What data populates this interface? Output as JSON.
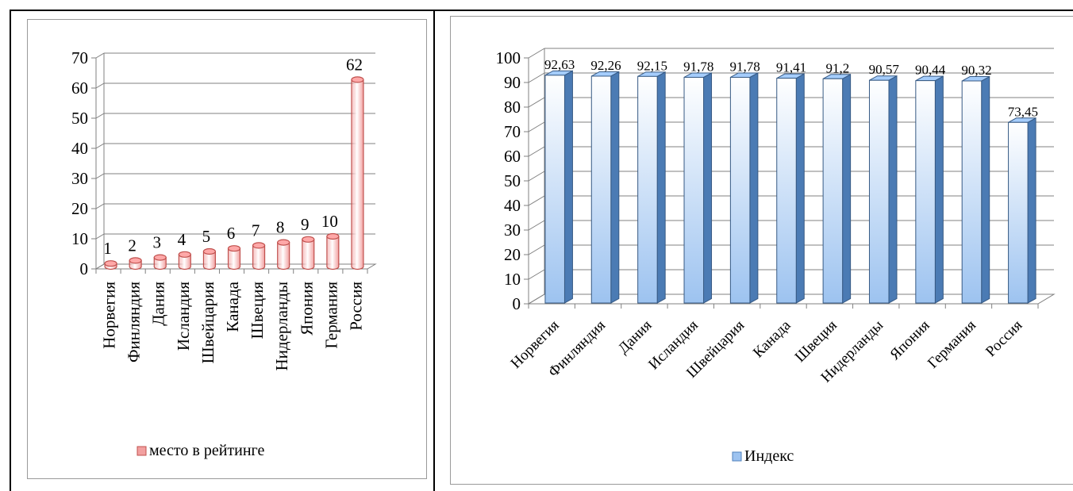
{
  "chart_data": [
    {
      "type": "bar",
      "categories": [
        "Норвегия",
        "Финляндия",
        "Дания",
        "Исландия",
        "Швейцария",
        "Канада",
        "Швеция",
        "Нидерланды",
        "Япония",
        "Германия",
        "Россия"
      ],
      "series": [
        {
          "name": "место в рейтинге",
          "values": [
            1,
            2,
            3,
            4,
            5,
            6,
            7,
            8,
            9,
            10,
            62
          ],
          "labels": [
            "1",
            "2",
            "3",
            "4",
            "5",
            "6",
            "7",
            "8",
            "9",
            "10",
            "62"
          ]
        }
      ],
      "ylim": [
        0,
        70
      ],
      "yticks": [
        "0",
        "10",
        "20",
        "30",
        "40",
        "50",
        "60",
        "70"
      ],
      "grid": true,
      "legend": "bottom",
      "color": "#f2a0a0",
      "edge_color": "#c0504d"
    },
    {
      "type": "bar",
      "categories": [
        "Норвегия",
        "Финляндия",
        "Дания",
        "Исландия",
        "Швейцария",
        "Канада",
        "Швеция",
        "Нидерланды",
        "Япония",
        "Германия",
        "Россия"
      ],
      "series": [
        {
          "name": "Индекс",
          "values": [
            92.63,
            92.26,
            92.15,
            91.78,
            91.78,
            91.41,
            91.2,
            90.57,
            90.44,
            90.32,
            73.45
          ],
          "labels": [
            "92,63",
            "92,26",
            "92,15",
            "91,78",
            "91,78",
            "91,41",
            "91,2",
            "90,57",
            "90,44",
            "90,32",
            "73,45"
          ]
        }
      ],
      "ylim": [
        0,
        100
      ],
      "yticks": [
        "0",
        "10",
        "20",
        "30",
        "40",
        "50",
        "60",
        "70",
        "80",
        "90",
        "100"
      ],
      "grid": true,
      "legend": "bottom",
      "color": "#9dc3f0",
      "edge_color": "#4f81bd"
    }
  ]
}
